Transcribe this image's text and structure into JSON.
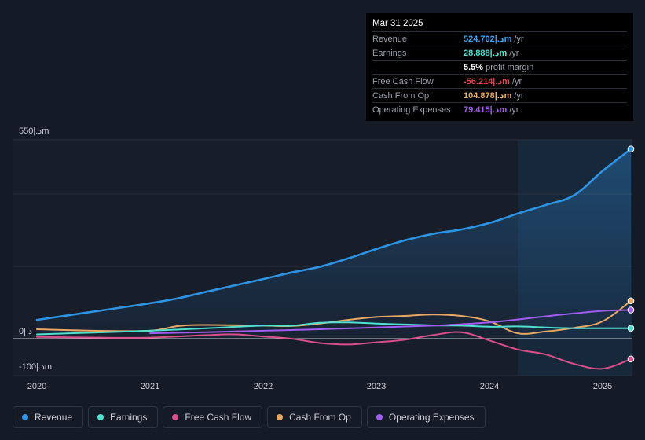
{
  "tooltip": {
    "date": "Mar 31 2025",
    "rows": [
      {
        "label": "Revenue",
        "value": "524.702|.دm",
        "unit": "/yr",
        "color": "#3ba3f0"
      },
      {
        "label": "Earnings",
        "value": "28.888|.دm",
        "unit": "/yr",
        "color": "#4fe0cf"
      },
      {
        "label": "",
        "value": "5.5%",
        "unit": "profit margin",
        "color": "#ffffff"
      },
      {
        "label": "Free Cash Flow",
        "value": "-56.214|.دm",
        "unit": "/yr",
        "color": "#e8414f"
      },
      {
        "label": "Cash From Op",
        "value": "104.878|.دm",
        "unit": "/yr",
        "color": "#f0b064"
      },
      {
        "label": "Operating Expenses",
        "value": "79.415|.دm",
        "unit": "/yr",
        "color": "#a15cf0"
      }
    ]
  },
  "legend": [
    {
      "label": "Revenue",
      "color": "#2f93e4"
    },
    {
      "label": "Earnings",
      "color": "#4fe0cf"
    },
    {
      "label": "Free Cash Flow",
      "color": "#d94f8a"
    },
    {
      "label": "Cash From Op",
      "color": "#e8a864"
    },
    {
      "label": "Operating Expenses",
      "color": "#a15cf0"
    }
  ],
  "chart_data": {
    "type": "line",
    "title": "",
    "ylabel_top": "550|.دm",
    "ylabel_zero": "0|.د",
    "ylabel_bottom": "-100|.دm",
    "ylim": [
      -100,
      550
    ],
    "xlim": [
      2020.0,
      2025.25
    ],
    "x_ticks": [
      "2020",
      "2021",
      "2022",
      "2023",
      "2024",
      "2025"
    ],
    "highlight_from": 2024.25,
    "series": [
      {
        "name": "Revenue",
        "color": "#2f93e4",
        "fill": true,
        "x": [
          2020.0,
          2020.5,
          2021.0,
          2021.25,
          2021.5,
          2022.0,
          2022.25,
          2022.5,
          2022.75,
          2023.0,
          2023.25,
          2023.5,
          2023.75,
          2024.0,
          2024.25,
          2024.5,
          2024.75,
          2025.0,
          2025.25
        ],
        "values": [
          52,
          75,
          98,
          112,
          130,
          165,
          183,
          199,
          222,
          248,
          272,
          290,
          302,
          320,
          346,
          370,
          397,
          464,
          524.7
        ]
      },
      {
        "name": "Earnings",
        "color": "#4fe0cf",
        "fill": false,
        "x": [
          2020.0,
          2020.5,
          2021.0,
          2021.5,
          2022.0,
          2022.25,
          2022.5,
          2022.75,
          2023.0,
          2023.5,
          2023.75,
          2024.0,
          2024.25,
          2024.5,
          2024.75,
          2025.0,
          2025.25
        ],
        "values": [
          12,
          17,
          22,
          29,
          36,
          36,
          44,
          45,
          42,
          37,
          36,
          33,
          34,
          31,
          29,
          29,
          28.9
        ]
      },
      {
        "name": "Free Cash Flow",
        "color": "#d94f8a",
        "fill": false,
        "x": [
          2020.0,
          2020.5,
          2021.0,
          2021.5,
          2021.75,
          2022.0,
          2022.25,
          2022.5,
          2022.75,
          2023.0,
          2023.25,
          2023.5,
          2023.75,
          2024.0,
          2024.25,
          2024.5,
          2024.75,
          2025.0,
          2025.25
        ],
        "values": [
          5,
          3,
          3,
          10,
          12,
          6,
          0,
          -12,
          -16,
          -10,
          -3,
          10,
          18,
          -5,
          -30,
          -44,
          -70,
          -83,
          -56.2
        ]
      },
      {
        "name": "Cash From Op",
        "color": "#e8a864",
        "fill": false,
        "x": [
          2020.0,
          2020.5,
          2021.0,
          2021.25,
          2021.5,
          2022.0,
          2022.25,
          2022.5,
          2022.75,
          2023.0,
          2023.25,
          2023.5,
          2023.75,
          2024.0,
          2024.25,
          2024.5,
          2024.75,
          2025.0,
          2025.25
        ],
        "values": [
          26,
          22,
          22,
          35,
          38,
          36,
          35,
          42,
          52,
          60,
          63,
          67,
          63,
          48,
          15,
          20,
          30,
          48,
          104.9
        ]
      },
      {
        "name": "Operating Expenses",
        "color": "#a15cf0",
        "fill": false,
        "x": [
          2021.0,
          2021.5,
          2022.0,
          2022.5,
          2023.0,
          2023.5,
          2023.75,
          2024.0,
          2024.25,
          2024.5,
          2024.75,
          2025.0,
          2025.25
        ],
        "values": [
          15,
          18,
          22,
          26,
          31,
          36,
          40,
          45,
          53,
          62,
          70,
          77,
          79.4
        ]
      }
    ]
  }
}
